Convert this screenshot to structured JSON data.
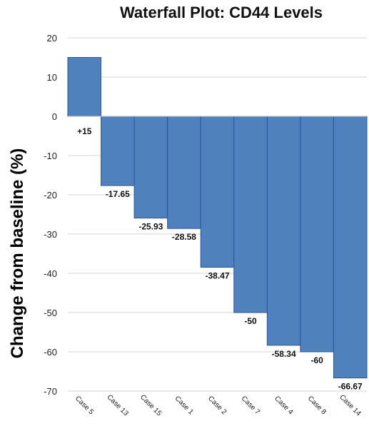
{
  "chart_data": {
    "type": "bar",
    "title": "Waterfall Plot: CD44 Levels",
    "xlabel": "",
    "ylabel": "Change from baseline (%)",
    "ylim": [
      -70,
      20
    ],
    "yticks": [
      20,
      10,
      0,
      -10,
      -20,
      -30,
      -40,
      -50,
      -60,
      -70
    ],
    "grid": true,
    "bar_color": "#4f81bd",
    "categories": [
      "Case 5",
      "Case 13",
      "Case 15",
      "Case 1",
      "Case 2",
      "Case 7",
      "Case 4",
      "Case 8",
      "Case 14"
    ],
    "values": [
      15,
      -17.65,
      -25.93,
      -28.58,
      -38.47,
      -50,
      -58.34,
      -60,
      -66.67
    ],
    "data_labels": [
      "+15",
      "-17.65",
      "-25.93",
      "-28.58",
      "-38.47",
      "-50",
      "-58.34",
      "-60",
      "-66.67"
    ]
  }
}
